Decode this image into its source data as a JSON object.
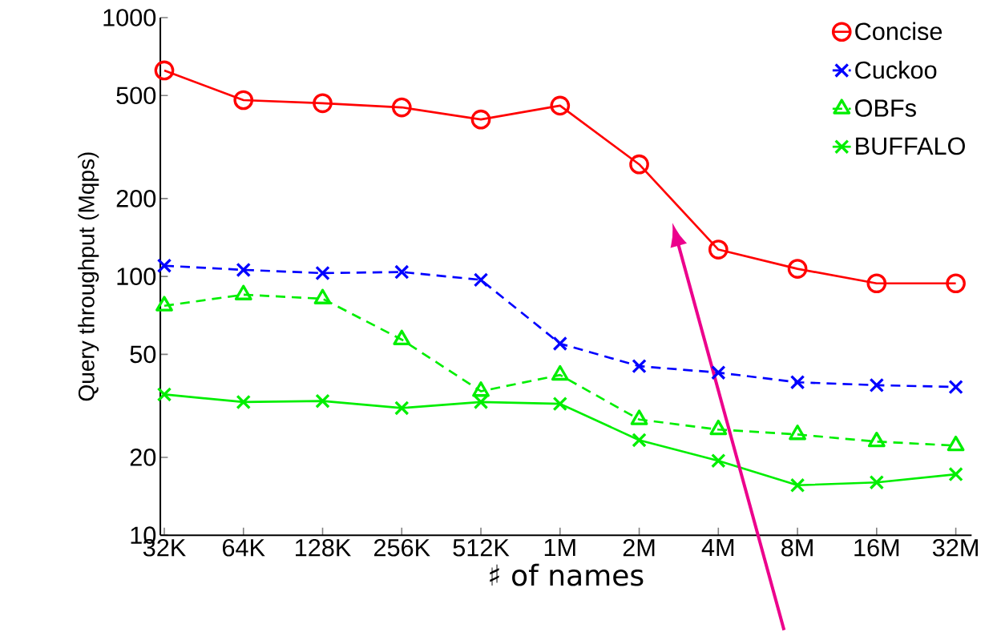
{
  "chart_data": {
    "type": "line",
    "xlabel": "♯ of names",
    "ylabel": "Query throughput (Mqps)",
    "categories": [
      "32K",
      "64K",
      "128K",
      "256K",
      "512K",
      "1M",
      "2M",
      "4M",
      "8M",
      "16M",
      "32M"
    ],
    "log": "y",
    "ylim": [
      10,
      1000
    ],
    "yticks": [
      10,
      20,
      50,
      100,
      200,
      500,
      1000
    ],
    "legend": "top right",
    "grid": false,
    "series": [
      {
        "name": "Concise",
        "color": "#ff0000",
        "marker": "circle",
        "line_style": "solid",
        "values": [
          625,
          480,
          467,
          450,
          404,
          457,
          271,
          127,
          107,
          94,
          94
        ]
      },
      {
        "name": "Cuckoo",
        "color": "#0000ff",
        "marker": "cross",
        "line_style": "dashed",
        "values": [
          110,
          106,
          103,
          104,
          97,
          55,
          45,
          42.5,
          39,
          38,
          37.4
        ]
      },
      {
        "name": "OBFs",
        "color": "#00ee00",
        "marker": "triangle",
        "line_style": "dashed",
        "values": [
          77,
          85,
          82,
          57,
          36,
          41.6,
          28,
          25.6,
          24.5,
          23,
          22.2
        ]
      },
      {
        "name": "BUFFALO",
        "color": "#00ee00",
        "marker": "cross",
        "line_style": "solid",
        "values": [
          35,
          32.7,
          33,
          31,
          32.7,
          32.2,
          23.3,
          19.4,
          15.6,
          16,
          17.2
        ]
      }
    ]
  }
}
